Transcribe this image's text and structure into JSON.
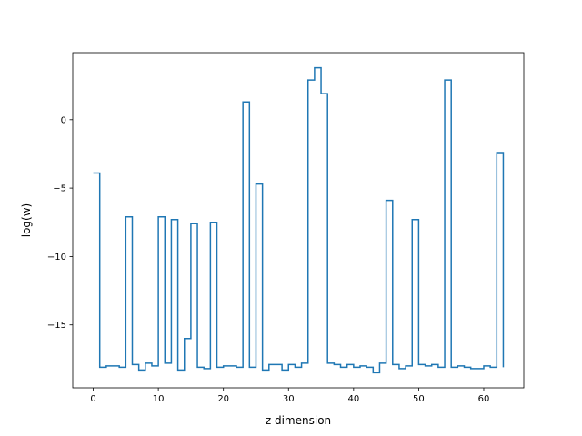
{
  "chart_data": {
    "type": "line",
    "drawstyle": "steps-post",
    "xlabel": "z dimension",
    "ylabel": "log(w)",
    "xlim": [
      -3.15,
      66.15
    ],
    "ylim": [
      -19.6,
      4.9
    ],
    "grid": false,
    "legend": "none",
    "x_ticks": [
      0,
      10,
      20,
      30,
      40,
      50,
      60
    ],
    "y_ticks": [
      0,
      -5,
      -10,
      -15
    ],
    "series": [
      {
        "color": "#1f77b4",
        "x": [
          0,
          1,
          2,
          3,
          4,
          5,
          6,
          7,
          8,
          9,
          10,
          11,
          12,
          13,
          14,
          15,
          16,
          17,
          18,
          19,
          20,
          21,
          22,
          23,
          24,
          25,
          26,
          27,
          28,
          29,
          30,
          31,
          32,
          33,
          34,
          35,
          36,
          37,
          38,
          39,
          40,
          41,
          42,
          43,
          44,
          45,
          46,
          47,
          48,
          49,
          50,
          51,
          52,
          53,
          54,
          55,
          56,
          57,
          58,
          59,
          60,
          61,
          62,
          63
        ],
        "y": [
          -3.9,
          -18.1,
          -18.0,
          -18.0,
          -18.1,
          -7.1,
          -17.9,
          -18.3,
          -17.8,
          -18.0,
          -7.1,
          -17.8,
          -7.3,
          -18.3,
          -16.0,
          -7.6,
          -18.1,
          -18.2,
          -7.5,
          -18.1,
          -18.0,
          -18.0,
          -18.1,
          1.3,
          -18.1,
          -4.7,
          -18.3,
          -17.9,
          -17.9,
          -18.3,
          -17.9,
          -18.1,
          -17.8,
          2.9,
          3.8,
          1.9,
          -17.8,
          -17.9,
          -18.1,
          -17.9,
          -18.1,
          -18.0,
          -18.1,
          -18.5,
          -17.8,
          -5.9,
          -17.9,
          -18.2,
          -18.0,
          -7.3,
          -17.9,
          -18.0,
          -17.9,
          -18.1,
          2.9,
          -18.1,
          -18.0,
          -18.1,
          -18.2,
          -18.2,
          -18.0,
          -18.1,
          -2.4,
          -18.1
        ]
      }
    ]
  }
}
